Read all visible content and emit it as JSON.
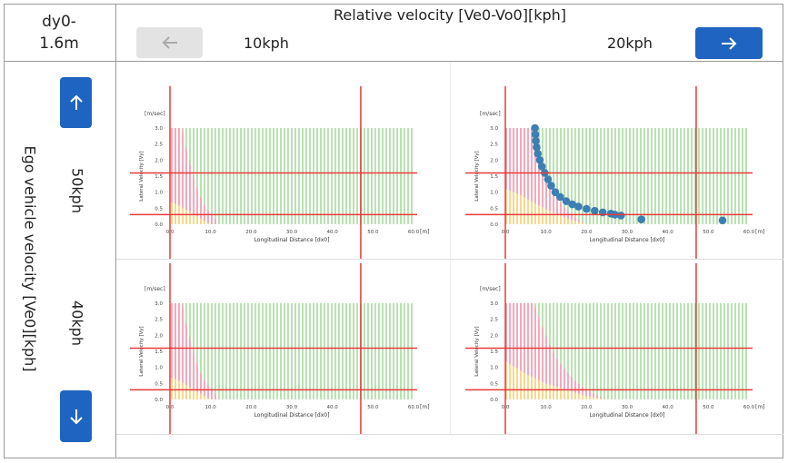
{
  "corner": "dy0-1.6m",
  "header": {
    "title": "Relative velocity [Ve0-Vo0][kph]",
    "columns": [
      "10kph",
      "20kph"
    ]
  },
  "side": {
    "title": "Ego vehicle velocity [Ve0][kph]",
    "rows": [
      "50kph",
      "40kph"
    ]
  },
  "axes": {
    "y_unit": "[m/sec]",
    "x_unit": "[m]",
    "ylabel": "Lateral Velocity [Vy]",
    "xlabel": "Longitudinal Distance [dx0]",
    "xlim": [
      0,
      60
    ],
    "ylim": [
      0,
      3
    ],
    "xticks": [
      {
        "value": 0,
        "label": "0.0"
      },
      {
        "value": 10,
        "label": "10.0"
      },
      {
        "value": 20,
        "label": "20.0"
      },
      {
        "value": 30,
        "label": "30.0"
      },
      {
        "value": 40,
        "label": "40.0"
      },
      {
        "value": 50,
        "label": "50.0"
      },
      {
        "value": 60,
        "label": "60.0"
      }
    ],
    "yticks": [
      {
        "value": 0,
        "label": "0.0"
      },
      {
        "value": 0.5,
        "label": "0.5"
      },
      {
        "value": 1,
        "label": "1.0"
      },
      {
        "value": 1.5,
        "label": "1.5"
      },
      {
        "value": 2,
        "label": "2.0"
      },
      {
        "value": 2.5,
        "label": "2.5"
      },
      {
        "value": 3,
        "label": "3.0"
      }
    ],
    "thresholds": {
      "x": [
        0,
        47
      ],
      "y": [
        1.6,
        0.3
      ]
    },
    "colors": {
      "safe": "#b9e2b2",
      "danger": "#f2a9bb",
      "caution": "#f6d88f",
      "threshold": "#e83a3a",
      "points": "#3b7fb4"
    }
  },
  "panels": [
    {
      "red": {
        "x": [
          0,
          3,
          4,
          5,
          6,
          7,
          8,
          9,
          10,
          11,
          12
        ],
        "y": [
          3,
          3,
          2.4,
          1.9,
          1.4,
          1.0,
          0.7,
          0.5,
          0.35,
          0.2,
          0
        ]
      },
      "yellow": {
        "x": [
          0,
          2,
          4,
          6,
          8,
          10
        ],
        "y": [
          0.7,
          0.6,
          0.45,
          0.3,
          0.15,
          0
        ]
      }
    },
    {
      "red": {
        "x": [
          0,
          7,
          8,
          9,
          10,
          11,
          12,
          14,
          16,
          18,
          20
        ],
        "y": [
          3,
          3,
          2.6,
          2.0,
          1.6,
          1.3,
          1.0,
          0.6,
          0.35,
          0.15,
          0
        ]
      },
      "yellow": {
        "x": [
          0,
          4,
          8,
          12,
          16,
          20
        ],
        "y": [
          1.1,
          0.9,
          0.6,
          0.35,
          0.15,
          0
        ]
      },
      "points": {
        "x": [
          7.3,
          7.4,
          7.5,
          7.7,
          8,
          8.5,
          9,
          9.7,
          10.5,
          11.3,
          12.3,
          13.5,
          15,
          16.5,
          18,
          20,
          22,
          24,
          26,
          27,
          28.5,
          33.5,
          53.5
        ],
        "y": [
          3.0,
          2.8,
          2.6,
          2.4,
          2.2,
          2.0,
          1.8,
          1.6,
          1.4,
          1.2,
          1.0,
          0.85,
          0.72,
          0.62,
          0.55,
          0.48,
          0.42,
          0.37,
          0.33,
          0.3,
          0.27,
          0.15,
          0.12
        ]
      }
    },
    {
      "red": {
        "x": [
          0,
          3,
          4,
          5,
          6,
          7,
          8,
          9,
          10,
          11,
          12
        ],
        "y": [
          3,
          3,
          2.4,
          1.9,
          1.4,
          1.0,
          0.7,
          0.5,
          0.35,
          0.2,
          0
        ]
      },
      "yellow": {
        "x": [
          0,
          2,
          4,
          6,
          8,
          10
        ],
        "y": [
          0.7,
          0.6,
          0.45,
          0.3,
          0.15,
          0
        ]
      }
    },
    {
      "red": {
        "x": [
          0,
          7,
          9,
          11,
          13,
          15,
          17,
          19,
          21,
          23,
          25
        ],
        "y": [
          3,
          3,
          2.3,
          1.7,
          1.2,
          0.9,
          0.6,
          0.4,
          0.25,
          0.1,
          0
        ]
      },
      "yellow": {
        "x": [
          0,
          5,
          10,
          15,
          20,
          25
        ],
        "y": [
          1.2,
          0.8,
          0.5,
          0.3,
          0.1,
          0
        ]
      }
    }
  ]
}
